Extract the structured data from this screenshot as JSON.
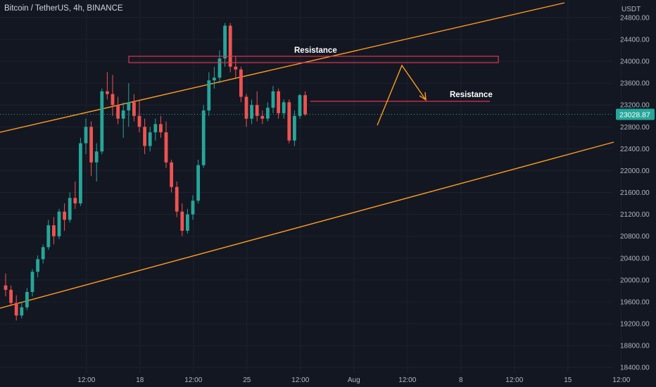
{
  "header": {
    "symbol": "Bitcoin / TetherUS",
    "interval": "4h",
    "exchange": "BINANCE"
  },
  "chart_data": {
    "type": "candlestick",
    "quote_currency": "USDT",
    "ylim": [
      18300,
      25120
    ],
    "y_ticks": [
      18400,
      18800,
      19200,
      19600,
      20000,
      20400,
      20800,
      21200,
      21600,
      22000,
      22400,
      22800,
      23200,
      23600,
      24000,
      24400,
      24800
    ],
    "y_tick_labels": [
      "18400.00",
      "18800.00",
      "19200.00",
      "19600.00",
      "20000.00",
      "20400.00",
      "20800.00",
      "21200.00",
      "21600.00",
      "22000.00",
      "22400.00",
      "22800.00",
      "23200.00",
      "23600.00",
      "24000.00",
      "24400.00",
      "24800.00"
    ],
    "x_ticks": [
      {
        "label": "12:00",
        "bar": 8
      },
      {
        "label": "18",
        "bar": 18
      },
      {
        "label": "12:00",
        "bar": 28
      },
      {
        "label": "25",
        "bar": 38
      },
      {
        "label": "12:00",
        "bar": 48
      },
      {
        "label": "Aug",
        "bar": 58
      },
      {
        "label": "12:00",
        "bar": 68
      },
      {
        "label": "8",
        "bar": 78
      },
      {
        "label": "12:00",
        "bar": 88
      },
      {
        "label": "15",
        "bar": 98
      },
      {
        "label": "12:00",
        "bar": 108
      }
    ],
    "last_price": 23028.87,
    "last_price_label": "23028.87",
    "ohlc": [
      [
        19900,
        20120,
        19700,
        19820
      ],
      [
        19820,
        19900,
        19520,
        19580
      ],
      [
        19580,
        19720,
        19260,
        19350
      ],
      [
        19350,
        19600,
        19300,
        19500
      ],
      [
        19500,
        19850,
        19450,
        19780
      ],
      [
        19780,
        20200,
        19700,
        20150
      ],
      [
        20150,
        20450,
        20050,
        20380
      ],
      [
        20380,
        20650,
        20300,
        20600
      ],
      [
        20600,
        21100,
        20550,
        21000
      ],
      [
        21000,
        21150,
        20650,
        20800
      ],
      [
        20800,
        21300,
        20750,
        21250
      ],
      [
        21250,
        21400,
        20900,
        21100
      ],
      [
        21100,
        21600,
        21050,
        21500
      ],
      [
        21500,
        21800,
        21300,
        21400
      ],
      [
        21400,
        22600,
        21350,
        22500
      ],
      [
        22500,
        22950,
        22300,
        22800
      ],
      [
        22800,
        22900,
        21900,
        22150
      ],
      [
        22150,
        22500,
        21800,
        22350
      ],
      [
        22350,
        23500,
        22300,
        23450
      ],
      [
        23450,
        23800,
        23300,
        23400
      ],
      [
        23400,
        23750,
        23000,
        23200
      ],
      [
        23200,
        23350,
        22850,
        22950
      ],
      [
        22950,
        23250,
        22600,
        23100
      ],
      [
        23100,
        23600,
        22800,
        23250
      ],
      [
        23250,
        23400,
        22900,
        23000
      ],
      [
        23000,
        23300,
        22700,
        22800
      ],
      [
        22800,
        22950,
        22300,
        22450
      ],
      [
        22450,
        22800,
        22350,
        22700
      ],
      [
        22700,
        22950,
        22550,
        22850
      ],
      [
        22850,
        23000,
        22600,
        22700
      ],
      [
        22700,
        22900,
        22050,
        22150
      ],
      [
        22150,
        22200,
        21600,
        21700
      ],
      [
        21700,
        21800,
        21150,
        21250
      ],
      [
        21250,
        21400,
        20800,
        20900
      ],
      [
        20900,
        21300,
        20850,
        21200
      ],
      [
        21200,
        21550,
        21100,
        21450
      ],
      [
        21450,
        22200,
        21400,
        22100
      ],
      [
        22100,
        23200,
        22050,
        23100
      ],
      [
        23100,
        23800,
        23000,
        23650
      ],
      [
        23650,
        23900,
        23500,
        23700
      ],
      [
        23700,
        24200,
        23600,
        24050
      ],
      [
        24050,
        24700,
        23900,
        24650
      ],
      [
        24650,
        24700,
        23800,
        23900
      ],
      [
        23900,
        24100,
        23700,
        23850
      ],
      [
        23850,
        23900,
        23250,
        23350
      ],
      [
        23350,
        23400,
        22800,
        22950
      ],
      [
        22950,
        23300,
        22850,
        23200
      ],
      [
        23200,
        23450,
        22900,
        23000
      ],
      [
        23000,
        23100,
        22850,
        22950
      ],
      [
        22950,
        23250,
        22900,
        23150
      ],
      [
        23150,
        23550,
        23050,
        23450
      ],
      [
        23450,
        23500,
        22950,
        23050
      ],
      [
        23050,
        23300,
        22950,
        23250
      ],
      [
        23250,
        23300,
        22500,
        22550
      ],
      [
        22550,
        23100,
        22450,
        23000
      ],
      [
        23000,
        23400,
        22950,
        23380
      ],
      [
        23380,
        23450,
        23000,
        23029
      ]
    ],
    "annotations": {
      "labels": [
        "Resistance",
        "Resistance"
      ]
    }
  }
}
